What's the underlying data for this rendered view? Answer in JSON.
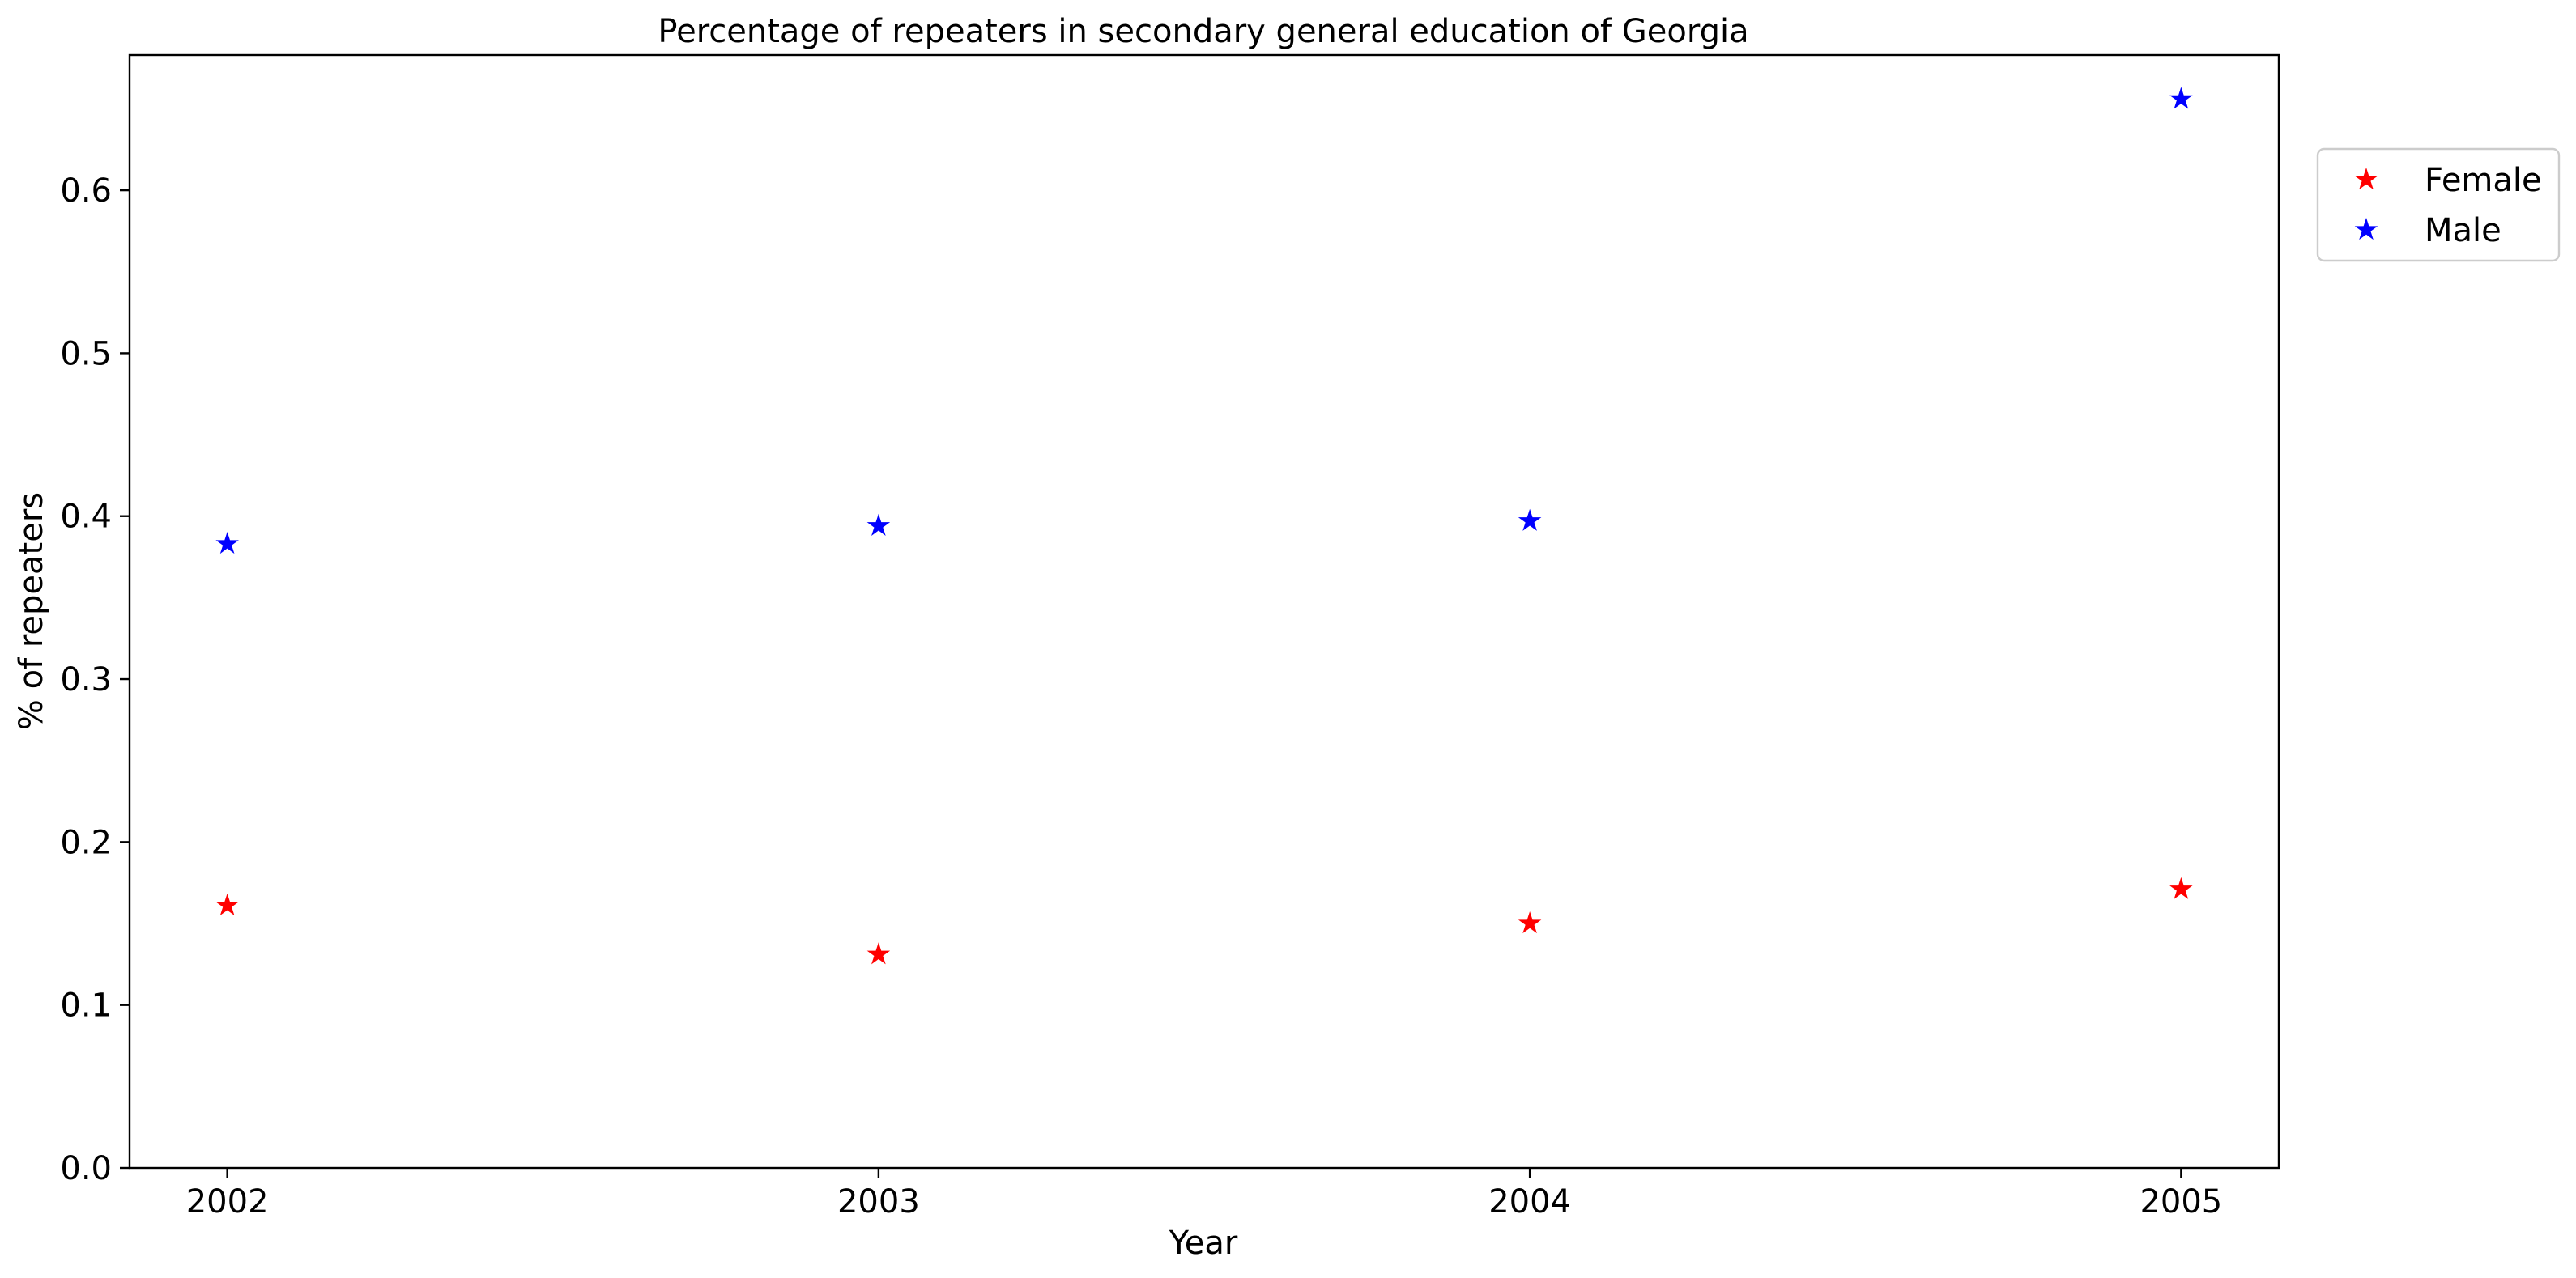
{
  "chart_data": {
    "type": "scatter",
    "title": "Percentage of repeaters in secondary general education of Georgia",
    "xlabel": "Year",
    "ylabel": "% of repeaters",
    "x": [
      2002,
      2003,
      2004,
      2005
    ],
    "x_tick_labels": [
      "2002",
      "2003",
      "2004",
      "2005"
    ],
    "xlim": [
      2001.85,
      2005.15
    ],
    "ylim": [
      0.0,
      0.683
    ],
    "y_ticks": [
      0.0,
      0.1,
      0.2,
      0.3,
      0.4,
      0.5,
      0.6
    ],
    "y_tick_labels": [
      "0.0",
      "0.1",
      "0.2",
      "0.3",
      "0.4",
      "0.5",
      "0.6"
    ],
    "marker": "star",
    "grid": false,
    "legend_position": "outside-top-right",
    "series": [
      {
        "name": "Female",
        "color": "#ff0000",
        "values": [
          0.161,
          0.131,
          0.15,
          0.171
        ]
      },
      {
        "name": "Male",
        "color": "#0000ff",
        "values": [
          0.383,
          0.394,
          0.397,
          0.656
        ]
      }
    ]
  }
}
